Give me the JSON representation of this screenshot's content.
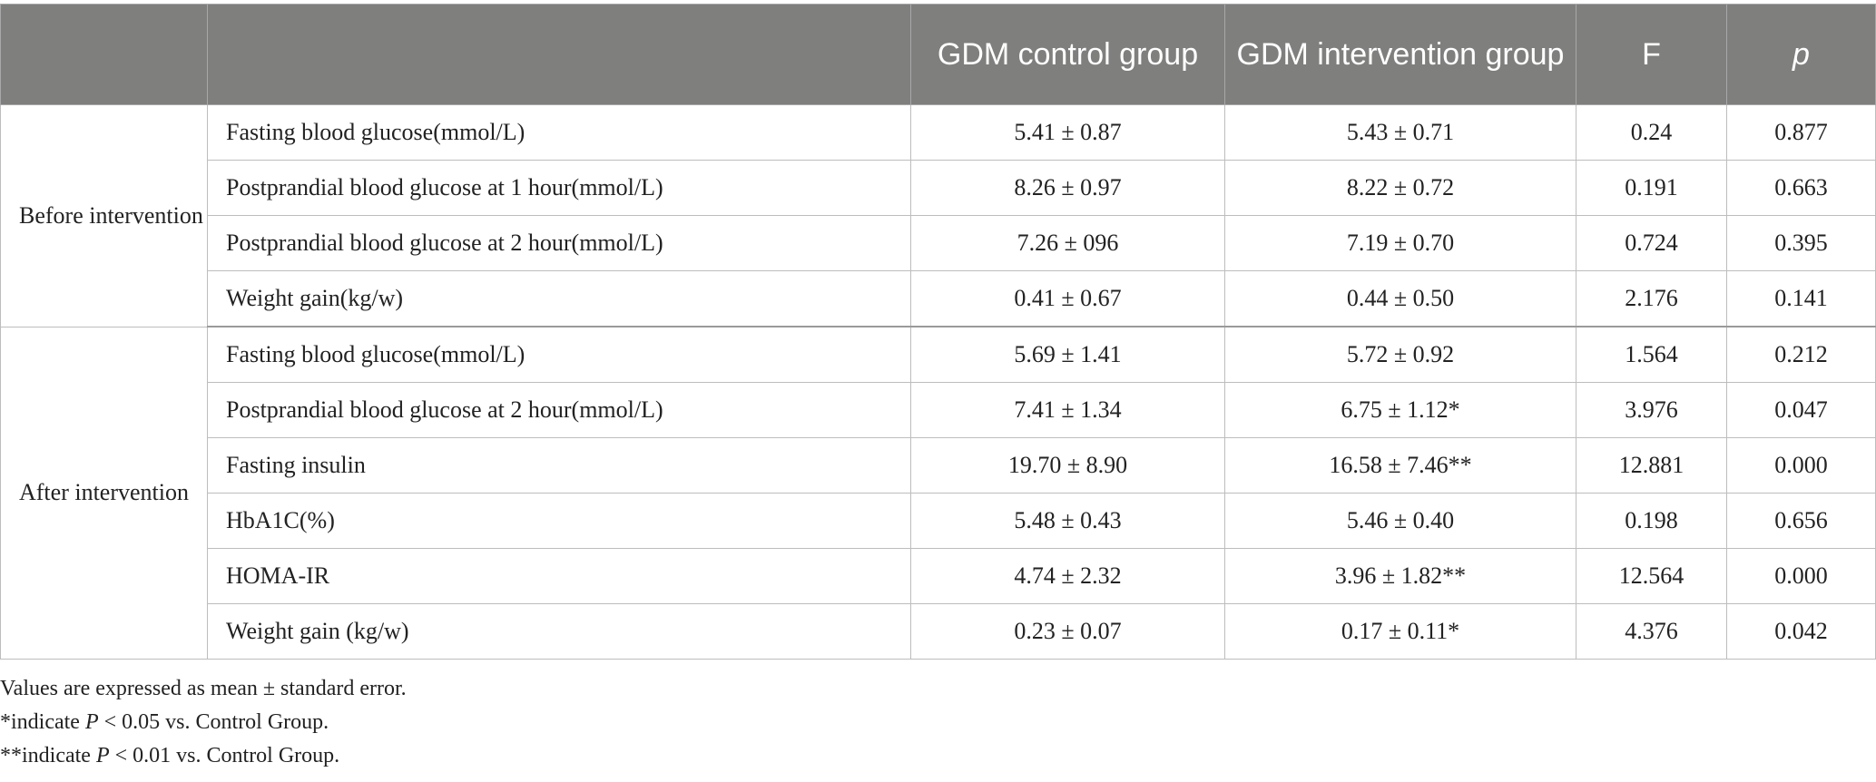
{
  "table": {
    "headers": [
      "",
      "",
      "GDM control group",
      "GDM intervention group",
      "F",
      "p"
    ],
    "groups": [
      {
        "label": "Before intervention",
        "rows": [
          [
            "Fasting blood glucose(mmol/L)",
            "5.41 ± 0.87",
            "5.43 ± 0.71",
            "0.24",
            "0.877"
          ],
          [
            "Postprandial blood glucose at 1 hour(mmol/L)",
            "8.26 ± 0.97",
            "8.22 ± 0.72",
            "0.191",
            "0.663"
          ],
          [
            "Postprandial blood glucose at 2 hour(mmol/L)",
            "7.26 ± 096",
            "7.19 ± 0.70",
            "0.724",
            "0.395"
          ],
          [
            "Weight gain(kg/w)",
            "0.41 ± 0.67",
            "0.44 ± 0.50",
            "2.176",
            "0.141"
          ]
        ]
      },
      {
        "label": "After intervention",
        "rows": [
          [
            "Fasting blood glucose(mmol/L)",
            "5.69 ± 1.41",
            "5.72 ± 0.92",
            "1.564",
            "0.212"
          ],
          [
            "Postprandial blood glucose at 2 hour(mmol/L)",
            "7.41 ± 1.34",
            "6.75 ± 1.12*",
            "3.976",
            "0.047"
          ],
          [
            "Fasting insulin",
            "19.70 ± 8.90",
            "16.58 ± 7.46**",
            "12.881",
            "0.000"
          ],
          [
            "HbA1C(%)",
            "5.48 ± 0.43",
            "5.46 ± 0.40",
            "0.198",
            "0.656"
          ],
          [
            "HOMA-IR",
            "4.74 ± 2.32",
            "3.96 ± 1.82**",
            "12.564",
            "0.000"
          ],
          [
            "Weight gain (kg/w)",
            "0.23 ± 0.07",
            "0.17 ± 0.11*",
            "4.376",
            "0.042"
          ]
        ]
      }
    ]
  },
  "notes": {
    "line1": "Values are expressed as mean ± standard error.",
    "line2_prefix": "*indicate ",
    "line2_p": "P",
    "line2_suffix": " < 0.05 vs. Control Group.",
    "line3_prefix": "**indicate ",
    "line3_p": "P",
    "line3_suffix": " < 0.01 vs. Control Group."
  },
  "colors": {
    "header_background": "#7f7f7e",
    "header_text": "#ffffff",
    "grid": "#bdbdbd"
  }
}
